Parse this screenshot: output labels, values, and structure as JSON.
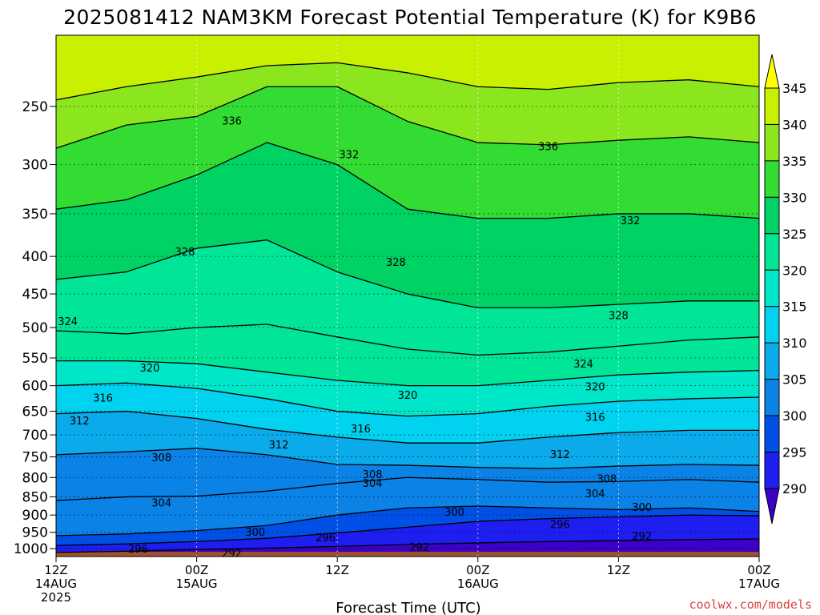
{
  "credit": "coolwx.com/models",
  "colors": {
    "credit": "#e04040",
    "ground": "#a0522d",
    "bands": [
      "#3c00c8",
      "#1e1ef0",
      "#0050e6",
      "#0a82e6",
      "#0aaaeb",
      "#00d2f0",
      "#00e6c8",
      "#00e696",
      "#00d264",
      "#32dc32",
      "#8ce61e",
      "#c8f000",
      "#ffff00"
    ]
  },
  "chart_data": {
    "type": "heatmap",
    "title": "2025081412 NAM3KM Forecast Potential Temperature (K) for K9B6",
    "xlabel": "Forecast Time (UTC)",
    "ylabel": "",
    "x_range_hours": [
      0,
      60
    ],
    "x_ticks": [
      {
        "hour": 0,
        "lines": [
          "12Z",
          "14AUG",
          "2025"
        ]
      },
      {
        "hour": 12,
        "lines": [
          "00Z",
          "15AUG"
        ]
      },
      {
        "hour": 24,
        "lines": [
          "12Z"
        ]
      },
      {
        "hour": 36,
        "lines": [
          "00Z",
          "16AUG"
        ]
      },
      {
        "hour": 48,
        "lines": [
          "12Z"
        ]
      },
      {
        "hour": 60,
        "lines": [
          "00Z",
          "17AUG"
        ]
      }
    ],
    "y_ticks": [
      250,
      300,
      350,
      400,
      450,
      500,
      550,
      600,
      650,
      700,
      750,
      800,
      850,
      900,
      950,
      1000
    ],
    "y_range_hpa": [
      200,
      1025
    ],
    "y_scale": "log",
    "colorbar": {
      "levels": [
        290,
        295,
        300,
        305,
        310,
        315,
        320,
        325,
        330,
        335,
        340,
        345
      ],
      "extends": "both",
      "units": "K"
    },
    "isentropes": [
      {
        "theta": 292,
        "pressures_at_hours": [
          [
            0,
            1012
          ],
          [
            6,
            1008
          ],
          [
            12,
            1003
          ],
          [
            18,
            998
          ],
          [
            24,
            993
          ],
          [
            30,
            987
          ],
          [
            36,
            982
          ],
          [
            42,
            978
          ],
          [
            48,
            975
          ],
          [
            54,
            972
          ],
          [
            60,
            970
          ]
        ]
      },
      {
        "theta": 296,
        "pressures_at_hours": [
          [
            0,
            990
          ],
          [
            6,
            985
          ],
          [
            12,
            978
          ],
          [
            18,
            968
          ],
          [
            24,
            952
          ],
          [
            30,
            935
          ],
          [
            36,
            918
          ],
          [
            42,
            910
          ],
          [
            48,
            905
          ],
          [
            54,
            900
          ],
          [
            60,
            902
          ]
        ]
      },
      {
        "theta": 300,
        "pressures_at_hours": [
          [
            0,
            960
          ],
          [
            6,
            955
          ],
          [
            12,
            945
          ],
          [
            18,
            930
          ],
          [
            24,
            900
          ],
          [
            30,
            880
          ],
          [
            36,
            875
          ],
          [
            42,
            880
          ],
          [
            48,
            885
          ],
          [
            54,
            880
          ],
          [
            60,
            890
          ]
        ]
      },
      {
        "theta": 304,
        "pressures_at_hours": [
          [
            0,
            860
          ],
          [
            6,
            850
          ],
          [
            12,
            848
          ],
          [
            18,
            835
          ],
          [
            24,
            815
          ],
          [
            30,
            800
          ],
          [
            36,
            805
          ],
          [
            42,
            812
          ],
          [
            48,
            810
          ],
          [
            54,
            805
          ],
          [
            60,
            812
          ]
        ]
      },
      {
        "theta": 308,
        "pressures_at_hours": [
          [
            0,
            745
          ],
          [
            6,
            738
          ],
          [
            12,
            730
          ],
          [
            18,
            745
          ],
          [
            24,
            768
          ],
          [
            30,
            770
          ],
          [
            36,
            775
          ],
          [
            42,
            778
          ],
          [
            48,
            772
          ],
          [
            54,
            768
          ],
          [
            60,
            770
          ]
        ]
      },
      {
        "theta": 312,
        "pressures_at_hours": [
          [
            0,
            655
          ],
          [
            6,
            650
          ],
          [
            12,
            665
          ],
          [
            18,
            688
          ],
          [
            24,
            705
          ],
          [
            30,
            718
          ],
          [
            36,
            718
          ],
          [
            42,
            705
          ],
          [
            48,
            695
          ],
          [
            54,
            690
          ],
          [
            60,
            690
          ]
        ]
      },
      {
        "theta": 316,
        "pressures_at_hours": [
          [
            0,
            600
          ],
          [
            6,
            595
          ],
          [
            12,
            605
          ],
          [
            18,
            625
          ],
          [
            24,
            650
          ],
          [
            30,
            660
          ],
          [
            36,
            655
          ],
          [
            42,
            640
          ],
          [
            48,
            630
          ],
          [
            54,
            625
          ],
          [
            60,
            622
          ]
        ]
      },
      {
        "theta": 320,
        "pressures_at_hours": [
          [
            0,
            555
          ],
          [
            6,
            555
          ],
          [
            12,
            560
          ],
          [
            18,
            575
          ],
          [
            24,
            590
          ],
          [
            30,
            600
          ],
          [
            36,
            600
          ],
          [
            42,
            590
          ],
          [
            48,
            580
          ],
          [
            54,
            575
          ],
          [
            60,
            572
          ]
        ]
      },
      {
        "theta": 324,
        "pressures_at_hours": [
          [
            0,
            505
          ],
          [
            6,
            510
          ],
          [
            12,
            500
          ],
          [
            18,
            495
          ],
          [
            24,
            515
          ],
          [
            30,
            535
          ],
          [
            36,
            545
          ],
          [
            42,
            540
          ],
          [
            48,
            530
          ],
          [
            54,
            520
          ],
          [
            60,
            515
          ]
        ]
      },
      {
        "theta": 328,
        "pressures_at_hours": [
          [
            0,
            430
          ],
          [
            6,
            420
          ],
          [
            12,
            390
          ],
          [
            18,
            380
          ],
          [
            24,
            420
          ],
          [
            30,
            450
          ],
          [
            36,
            470
          ],
          [
            42,
            470
          ],
          [
            48,
            465
          ],
          [
            54,
            460
          ],
          [
            60,
            460
          ]
        ]
      },
      {
        "theta": 332,
        "pressures_at_hours": [
          [
            0,
            345
          ],
          [
            6,
            335
          ],
          [
            12,
            310
          ],
          [
            18,
            280
          ],
          [
            24,
            300
          ],
          [
            30,
            345
          ],
          [
            36,
            355
          ],
          [
            42,
            355
          ],
          [
            48,
            350
          ],
          [
            54,
            350
          ],
          [
            60,
            355
          ]
        ]
      },
      {
        "theta": 336,
        "pressures_at_hours": [
          [
            0,
            285
          ],
          [
            6,
            265
          ],
          [
            12,
            258
          ],
          [
            18,
            235
          ],
          [
            24,
            235
          ],
          [
            30,
            262
          ],
          [
            36,
            280
          ],
          [
            42,
            282
          ],
          [
            48,
            278
          ],
          [
            54,
            275
          ],
          [
            60,
            280
          ]
        ]
      },
      {
        "theta": 340,
        "pressures_at_hours": [
          [
            0,
            245
          ],
          [
            6,
            235
          ],
          [
            12,
            228
          ],
          [
            18,
            220
          ],
          [
            24,
            218
          ],
          [
            30,
            225
          ],
          [
            36,
            235
          ],
          [
            42,
            237
          ],
          [
            48,
            232
          ],
          [
            54,
            230
          ],
          [
            60,
            235
          ]
        ]
      }
    ],
    "contour_labels": [
      {
        "text": "336",
        "hour": 15,
        "p": 262
      },
      {
        "text": "332",
        "hour": 25,
        "p": 291
      },
      {
        "text": "336",
        "hour": 42,
        "p": 284
      },
      {
        "text": "332",
        "hour": 49,
        "p": 358
      },
      {
        "text": "328",
        "hour": 11,
        "p": 395
      },
      {
        "text": "328",
        "hour": 29,
        "p": 408
      },
      {
        "text": "328",
        "hour": 48,
        "p": 482
      },
      {
        "text": "324",
        "hour": 1,
        "p": 491
      },
      {
        "text": "324",
        "hour": 45,
        "p": 561
      },
      {
        "text": "320",
        "hour": 8,
        "p": 568
      },
      {
        "text": "320",
        "hour": 30,
        "p": 619
      },
      {
        "text": "320",
        "hour": 46,
        "p": 603
      },
      {
        "text": "316",
        "hour": 4,
        "p": 624
      },
      {
        "text": "316",
        "hour": 26,
        "p": 688
      },
      {
        "text": "316",
        "hour": 46,
        "p": 663
      },
      {
        "text": "312",
        "hour": 2,
        "p": 671
      },
      {
        "text": "312",
        "hour": 19,
        "p": 723
      },
      {
        "text": "312",
        "hour": 43,
        "p": 745
      },
      {
        "text": "308",
        "hour": 9,
        "p": 753
      },
      {
        "text": "308",
        "hour": 27,
        "p": 793
      },
      {
        "text": "308",
        "hour": 47,
        "p": 805
      },
      {
        "text": "304",
        "hour": 27,
        "p": 816
      },
      {
        "text": "304",
        "hour": 46,
        "p": 843
      },
      {
        "text": "304",
        "hour": 9,
        "p": 867
      },
      {
        "text": "300",
        "hour": 34,
        "p": 893
      },
      {
        "text": "300",
        "hour": 50,
        "p": 880
      },
      {
        "text": "300",
        "hour": 17,
        "p": 951
      },
      {
        "text": "296",
        "hour": 43,
        "p": 928
      },
      {
        "text": "296",
        "hour": 23,
        "p": 968
      },
      {
        "text": "296",
        "hour": 7,
        "p": 1002
      },
      {
        "text": "292",
        "hour": 50,
        "p": 963
      },
      {
        "text": "292",
        "hour": 31,
        "p": 997
      },
      {
        "text": "292",
        "hour": 15,
        "p": 1016
      }
    ],
    "grid": true
  }
}
